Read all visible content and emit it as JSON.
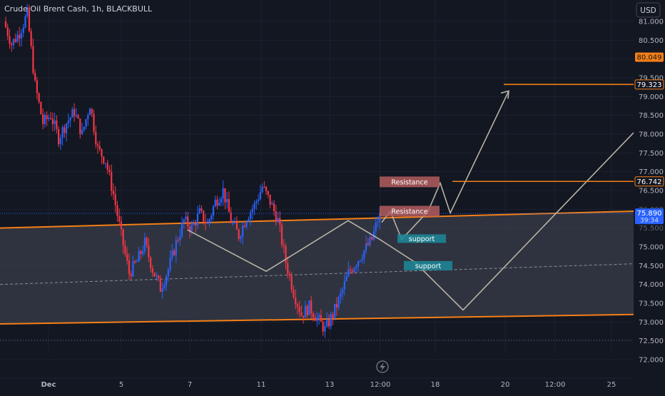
{
  "header": {
    "symbol_title": "Crude Oil Brent Cash, 1h, BLACKBULL"
  },
  "currency_button": {
    "label": "USD"
  },
  "price_badges": [
    {
      "value": "80.049",
      "kind": "orange"
    },
    {
      "value": "79.323",
      "kind": "orange-outline"
    },
    {
      "value": "76.742",
      "kind": "orange-outline"
    },
    {
      "value": "75.890",
      "kind": "blue",
      "sub": "39:34"
    }
  ],
  "annotations": [
    {
      "text": "Resistance",
      "kind": "resistance",
      "price": 76.73
    },
    {
      "text": "Resistance",
      "kind": "resistance",
      "price": 75.95
    },
    {
      "text": "support",
      "kind": "support",
      "price": 75.22
    },
    {
      "text": "support",
      "kind": "support",
      "price": 74.5
    }
  ],
  "colors": {
    "background": "#131722",
    "grid": "#1e2230",
    "axis_text": "#b2b5be",
    "channel_line": "#f57f17",
    "channel_fill": "#3a3d49",
    "up_candle": "#2962ff",
    "down_candle": "#f23645",
    "projection": "#b7b3a4",
    "resistance_box": "#b45d5e",
    "support_box": "#1b8a9a",
    "last_price": "#2962ff"
  },
  "chart_data": {
    "type": "candlestick",
    "title": "Crude Oil Brent Cash, 1h, BLACKBULL",
    "y_axis": {
      "ticks": [
        "81.000",
        "80.500",
        "79.500",
        "79.000",
        "78.500",
        "78.000",
        "77.500",
        "77.000",
        "76.500",
        "75.000",
        "74.500",
        "74.000",
        "73.500",
        "73.000",
        "72.500",
        "72.000"
      ],
      "partial_ticks": [
        "76.000",
        "75.500"
      ],
      "range": [
        71.9,
        81.3
      ],
      "position": "right"
    },
    "x_axis": {
      "ticks": [
        "Dec",
        "5",
        "7",
        "11",
        "13",
        "12:00",
        "18",
        "20",
        "12:00",
        "25"
      ]
    },
    "channel": {
      "upper": [
        75.5,
        75.95
      ],
      "lower": [
        72.95,
        73.2
      ],
      "mid": [
        74.0,
        74.55
      ]
    },
    "price_path": [
      {
        "t": "Dec 1",
        "price": 81.0
      },
      {
        "t": "Dec 1",
        "price": 80.4
      },
      {
        "t": "Dec 2",
        "price": 80.7
      },
      {
        "t": "Dec 2",
        "price": 81.2
      },
      {
        "t": "Dec 3",
        "price": 79.3
      },
      {
        "t": "Dec 4",
        "price": 78.3
      },
      {
        "t": "Dec 4",
        "price": 78.5
      },
      {
        "t": "Dec 5",
        "price": 77.9
      },
      {
        "t": "Dec 5",
        "price": 78.3
      },
      {
        "t": "Dec 5",
        "price": 78.6
      },
      {
        "t": "Dec 6",
        "price": 78.0
      },
      {
        "t": "Dec 6",
        "price": 78.8
      },
      {
        "t": "Dec 6",
        "price": 77.6
      },
      {
        "t": "Dec 6",
        "price": 77.3
      },
      {
        "t": "Dec 7",
        "price": 76.4
      },
      {
        "t": "Dec 7",
        "price": 75.3
      },
      {
        "t": "Dec 7",
        "price": 74.3
      },
      {
        "t": "Dec 8",
        "price": 74.6
      },
      {
        "t": "Dec 8",
        "price": 75.1
      },
      {
        "t": "Dec 8",
        "price": 74.4
      },
      {
        "t": "Dec 9",
        "price": 73.9
      },
      {
        "t": "Dec 9",
        "price": 74.4
      },
      {
        "t": "Dec 9",
        "price": 75.1
      },
      {
        "t": "Dec 10",
        "price": 75.7
      },
      {
        "t": "Dec 10",
        "price": 75.5
      },
      {
        "t": "Dec 10",
        "price": 75.9
      },
      {
        "t": "Dec 11",
        "price": 75.6
      },
      {
        "t": "Dec 11",
        "price": 76.2
      },
      {
        "t": "Dec 11",
        "price": 76.5
      },
      {
        "t": "Dec 12",
        "price": 75.7
      },
      {
        "t": "Dec 12",
        "price": 75.3
      },
      {
        "t": "Dec 12",
        "price": 75.8
      },
      {
        "t": "Dec 12",
        "price": 76.1
      },
      {
        "t": "Dec 13",
        "price": 76.6
      },
      {
        "t": "Dec 13",
        "price": 76.2
      },
      {
        "t": "Dec 13",
        "price": 75.7
      },
      {
        "t": "Dec 13",
        "price": 74.6
      },
      {
        "t": "Dec 13",
        "price": 73.8
      },
      {
        "t": "Dec 14",
        "price": 73.2
      },
      {
        "t": "Dec 14",
        "price": 73.4
      },
      {
        "t": "Dec 14",
        "price": 73.1
      },
      {
        "t": "Dec 14",
        "price": 72.8
      },
      {
        "t": "Dec 14",
        "price": 73.2
      },
      {
        "t": "Dec 15",
        "price": 73.7
      },
      {
        "t": "Dec 15",
        "price": 74.3
      },
      {
        "t": "Dec 15",
        "price": 74.6
      },
      {
        "t": "Dec 15",
        "price": 74.9
      },
      {
        "t": "Dec 15",
        "price": 75.2
      },
      {
        "t": "Dec 15",
        "price": 75.89
      }
    ],
    "last_price": 75.89,
    "grid": true,
    "legend": "none"
  }
}
